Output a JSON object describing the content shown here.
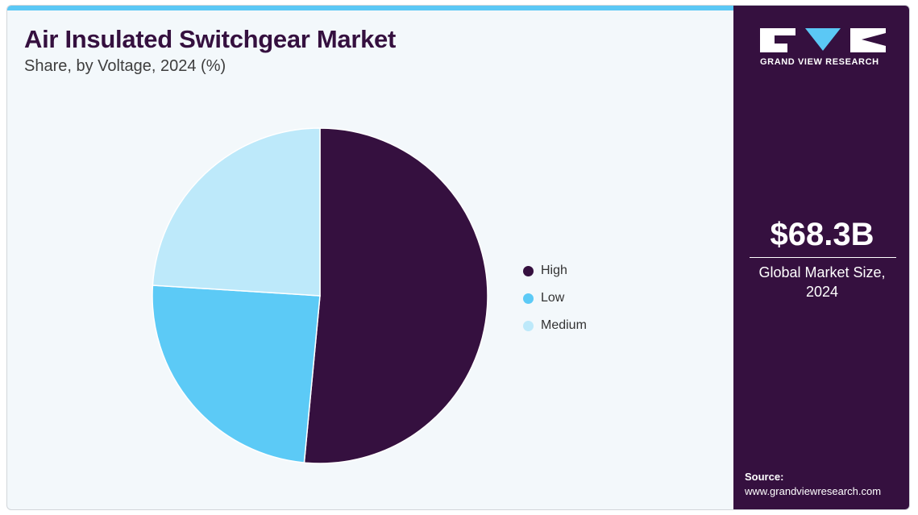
{
  "header": {
    "title": "Air Insulated Switchgear Market",
    "subtitle": "Share, by Voltage, 2024 (%)"
  },
  "chart_data": {
    "type": "pie",
    "title": "Air Insulated Switchgear Market",
    "subtitle": "Share, by Voltage, 2024 (%)",
    "categories": [
      "High",
      "Low",
      "Medium"
    ],
    "values": [
      51.5,
      24.5,
      24.0
    ],
    "colors": [
      "#35103f",
      "#5ccaf6",
      "#bde9fa"
    ],
    "legend_position": "right"
  },
  "sidebar": {
    "logo_text": "GRAND VIEW RESEARCH",
    "market_value": "$68.3B",
    "market_label": "Global Market Size, 2024",
    "source_label": "Source:",
    "source_url": "www.grandviewresearch.com"
  }
}
